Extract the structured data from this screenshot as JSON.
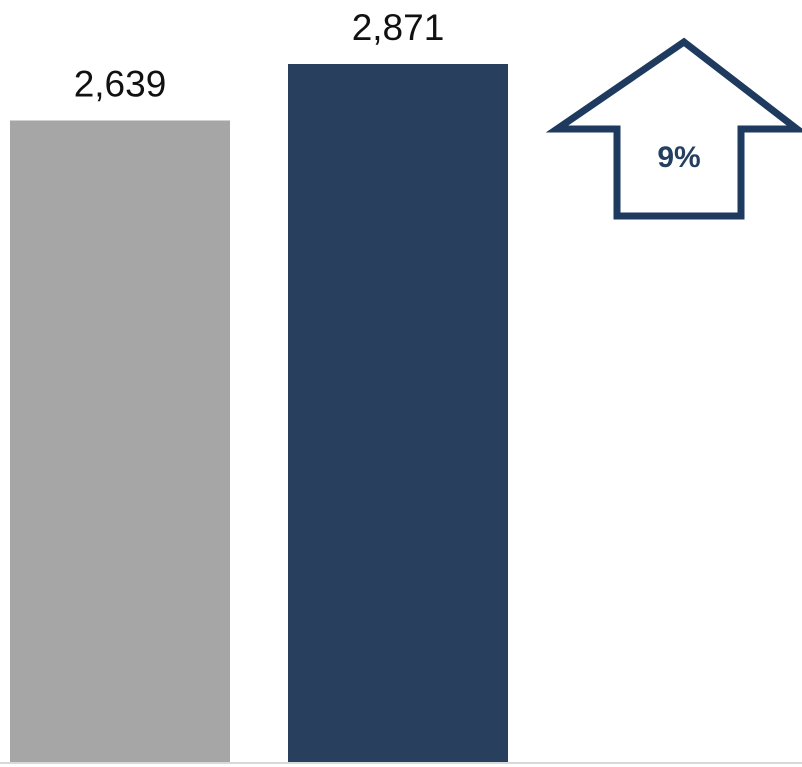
{
  "chart_data": {
    "type": "bar",
    "categories": [
      "",
      ""
    ],
    "values": [
      2639,
      2871
    ],
    "value_labels": [
      "2,639",
      "2,871"
    ],
    "ylim": [
      0,
      2871
    ],
    "grid": false,
    "legend": "none",
    "title": "",
    "xlabel": "",
    "ylabel": ""
  },
  "annotation": {
    "text": "9%",
    "icon": "up-arrow-icon"
  },
  "colors": {
    "bar_prior": "#a6a6a6",
    "bar_current": "#283f5e",
    "arrow_outline": "#1f3a5f",
    "axis": "#d9d9d9"
  }
}
